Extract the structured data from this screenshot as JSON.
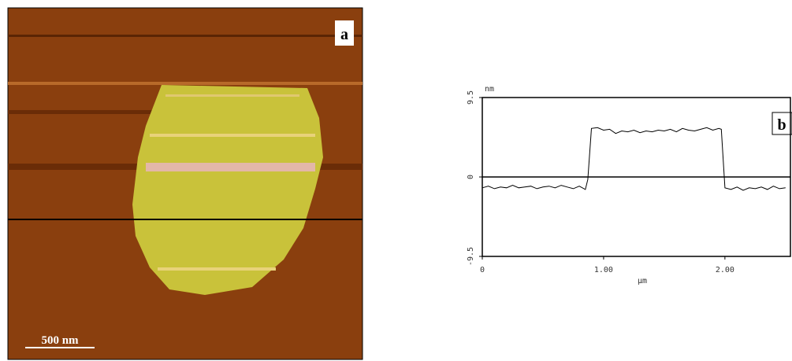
{
  "panels": {
    "a": {
      "label": "a",
      "scale_bar": "500 nm"
    }
  },
  "chart_data": {
    "type": "line",
    "label": "b",
    "y_unit": "nm",
    "x_label": "μm",
    "x": [
      0,
      0.05,
      0.1,
      0.15,
      0.2,
      0.25,
      0.3,
      0.35,
      0.4,
      0.45,
      0.5,
      0.55,
      0.6,
      0.65,
      0.7,
      0.75,
      0.8,
      0.85,
      0.87,
      0.9,
      0.95,
      1.0,
      1.05,
      1.1,
      1.15,
      1.2,
      1.25,
      1.3,
      1.35,
      1.4,
      1.45,
      1.5,
      1.55,
      1.6,
      1.65,
      1.7,
      1.75,
      1.8,
      1.85,
      1.9,
      1.95,
      1.97,
      2.0,
      2.05,
      2.1,
      2.15,
      2.2,
      2.25,
      2.3,
      2.35,
      2.4,
      2.45,
      2.5
    ],
    "values": [
      -1.3,
      -1.1,
      -1.4,
      -1.2,
      -1.3,
      -1.0,
      -1.3,
      -1.2,
      -1.1,
      -1.4,
      -1.2,
      -1.1,
      -1.3,
      -1.0,
      -1.2,
      -1.4,
      -1.1,
      -1.5,
      -0.3,
      5.8,
      5.9,
      5.6,
      5.7,
      5.2,
      5.5,
      5.4,
      5.6,
      5.3,
      5.5,
      5.4,
      5.6,
      5.5,
      5.7,
      5.4,
      5.8,
      5.6,
      5.5,
      5.7,
      5.9,
      5.6,
      5.8,
      5.7,
      -1.3,
      -1.5,
      -1.2,
      -1.6,
      -1.3,
      -1.4,
      -1.2,
      -1.5,
      -1.1,
      -1.4,
      -1.3
    ],
    "color": "#000000",
    "xlim": [
      0,
      2.54
    ],
    "ylim": [
      -9.5,
      9.5
    ],
    "xticks": [
      0,
      {
        "value": 1,
        "label": "1.00"
      },
      {
        "value": 2,
        "label": "2.00"
      }
    ],
    "yticks": [
      -9.5,
      0,
      9.5
    ],
    "zero_line": true
  }
}
